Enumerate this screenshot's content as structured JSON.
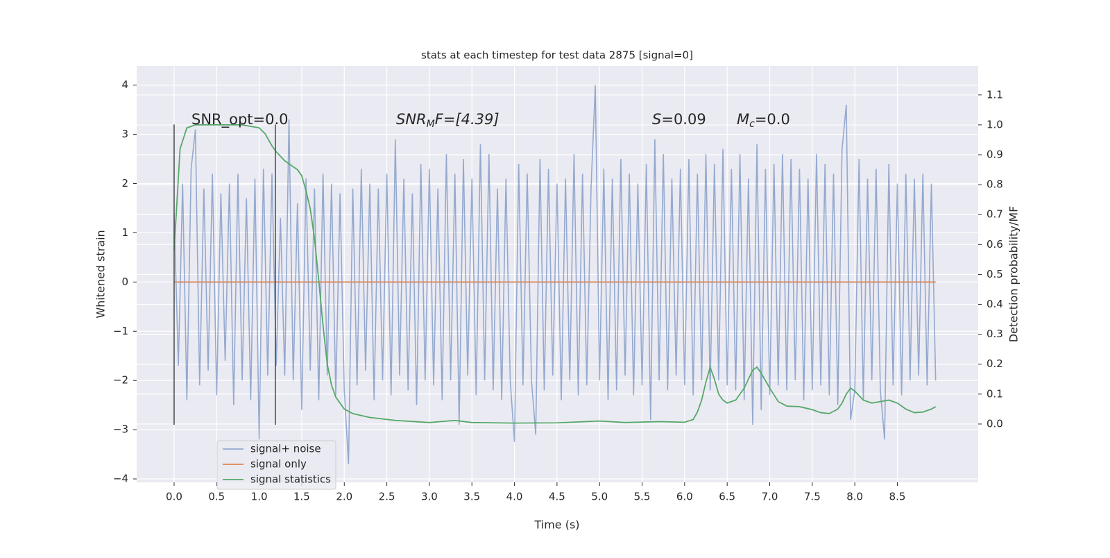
{
  "chart_data": {
    "type": "line",
    "title": "stats at each timestep for test data 2875 [signal=0]",
    "xlabel": "Time (s)",
    "ylabel": "Whitened strain",
    "y2label": "Detection probability/MF",
    "xlim": [
      -0.44,
      9.45
    ],
    "ylim": [
      -4.07,
      4.39
    ],
    "y2lim": [
      -0.195,
      1.197
    ],
    "xticks": [
      {
        "value": 0,
        "label": "0.0"
      },
      0.5,
      {
        "value": 1,
        "label": "1.0"
      },
      1.5,
      {
        "value": 2,
        "label": "2.0"
      },
      2.5,
      {
        "value": 3,
        "label": "3.0"
      },
      3.5,
      {
        "value": 4,
        "label": "4.0"
      },
      4.5,
      {
        "value": 5,
        "label": "5.0"
      },
      5.5,
      {
        "value": 6,
        "label": "6.0"
      },
      6.5,
      {
        "value": 7,
        "label": "7.0"
      },
      7.5,
      {
        "value": 8,
        "label": "8.0"
      },
      8.5
    ],
    "yticks": [
      {
        "value": -4,
        "label": "−4"
      },
      {
        "value": -3,
        "label": "−3"
      },
      {
        "value": -2,
        "label": "−2"
      },
      {
        "value": -1,
        "label": "−1"
      },
      0,
      1,
      2,
      3,
      4
    ],
    "y2ticks": [
      {
        "value": 0,
        "label": "0.0"
      },
      0.1,
      0.2,
      0.3,
      0.4,
      0.5,
      0.6,
      0.7,
      0.8,
      0.9,
      {
        "value": 1,
        "label": "1.0"
      },
      1.1
    ],
    "grid": true,
    "legend": "lower left",
    "series": [
      {
        "name": "signal+ noise",
        "color": "#4c72b0",
        "x": [
          0,
          0.05,
          0.1,
          0.15,
          0.2,
          0.25,
          0.3,
          0.35,
          0.4,
          0.45,
          0.5,
          0.55,
          0.6,
          0.65,
          0.7,
          0.75,
          0.8,
          0.85,
          0.9,
          0.95,
          1,
          1.05,
          1.1,
          1.15,
          1.2,
          1.25,
          1.3,
          1.35,
          1.4,
          1.45,
          1.5,
          1.55,
          1.6,
          1.65,
          1.7,
          1.75,
          1.8,
          1.85,
          1.9,
          1.95,
          2,
          2.05,
          2.1,
          2.15,
          2.2,
          2.25,
          2.3,
          2.35,
          2.4,
          2.45,
          2.5,
          2.55,
          2.6,
          2.65,
          2.7,
          2.75,
          2.8,
          2.85,
          2.9,
          2.95,
          3,
          3.05,
          3.1,
          3.15,
          3.2,
          3.25,
          3.3,
          3.35,
          3.4,
          3.45,
          3.5,
          3.55,
          3.6,
          3.65,
          3.7,
          3.75,
          3.8,
          3.85,
          3.9,
          3.95,
          4,
          4.05,
          4.1,
          4.15,
          4.2,
          4.25,
          4.3,
          4.35,
          4.4,
          4.45,
          4.5,
          4.55,
          4.6,
          4.65,
          4.7,
          4.75,
          4.8,
          4.85,
          4.9,
          4.95,
          5,
          5.05,
          5.1,
          5.15,
          5.2,
          5.25,
          5.3,
          5.35,
          5.4,
          5.45,
          5.5,
          5.55,
          5.6,
          5.65,
          5.7,
          5.75,
          5.8,
          5.85,
          5.9,
          5.95,
          6,
          6.05,
          6.1,
          6.15,
          6.2,
          6.25,
          6.3,
          6.35,
          6.4,
          6.45,
          6.5,
          6.55,
          6.6,
          6.65,
          6.7,
          6.75,
          6.8,
          6.85,
          6.9,
          6.95,
          7,
          7.05,
          7.1,
          7.15,
          7.2,
          7.25,
          7.3,
          7.35,
          7.4,
          7.45,
          7.5,
          7.55,
          7.6,
          7.65,
          7.7,
          7.75,
          7.8,
          7.85,
          7.9,
          7.95,
          8,
          8.05,
          8.1,
          8.15,
          8.2,
          8.25,
          8.3,
          8.35,
          8.4,
          8.45,
          8.5,
          8.55,
          8.6,
          8.65,
          8.7,
          8.75,
          8.8,
          8.85,
          8.9,
          8.95
        ],
        "values": [
          1.4,
          -1.7,
          2.0,
          -2.4,
          2.3,
          3.1,
          -2.1,
          1.9,
          -1.8,
          2.2,
          -2.3,
          1.8,
          -1.6,
          2.0,
          -2.5,
          2.2,
          -2.0,
          1.7,
          -2.4,
          2.1,
          -3.2,
          2.3,
          -1.9,
          2.2,
          -1.7,
          1.3,
          -1.9,
          3.3,
          -2.0,
          1.6,
          -2.6,
          2.1,
          -1.8,
          1.9,
          -2.4,
          2.2,
          -1.9,
          2.0,
          -2.3,
          1.8,
          -2.2,
          -3.7,
          1.9,
          -2.1,
          2.3,
          -1.8,
          2.0,
          -2.4,
          1.9,
          -2.0,
          2.2,
          -2.3,
          2.9,
          -1.9,
          2.1,
          -2.2,
          1.8,
          -2.5,
          2.4,
          -2.0,
          2.3,
          -2.1,
          1.9,
          -2.4,
          2.6,
          -2.0,
          2.2,
          -2.9,
          2.5,
          -1.9,
          2.1,
          -2.3,
          2.8,
          -2.0,
          2.6,
          -2.2,
          1.9,
          -2.4,
          2.1,
          -2.0,
          -3.25,
          2.4,
          -2.1,
          2.2,
          -2.0,
          -3.1,
          2.5,
          -2.2,
          2.3,
          -1.9,
          2.0,
          -2.4,
          2.1,
          -2.0,
          2.6,
          -2.3,
          2.2,
          -2.1,
          1.9,
          4.0,
          -2.0,
          2.3,
          -2.4,
          2.1,
          -2.2,
          2.5,
          -1.9,
          2.2,
          -2.3,
          2.0,
          -2.1,
          2.4,
          -2.8,
          2.9,
          -2.0,
          2.6,
          -2.2,
          2.1,
          -1.9,
          2.3,
          -2.1,
          2.5,
          -2.3,
          2.2,
          -2.0,
          2.6,
          -2.2,
          2.4,
          -2.0,
          2.7,
          -2.1,
          2.3,
          -2.2,
          2.6,
          -2.4,
          2.1,
          -2.9,
          2.8,
          -2.6,
          2.3,
          -2.3,
          2.4,
          -2.1,
          2.6,
          -2.2,
          2.5,
          -2.0,
          2.3,
          -2.4,
          2.1,
          -2.2,
          2.6,
          -2.1,
          2.4,
          -2.3,
          2.2,
          -2.5,
          2.7,
          3.6,
          -2.8,
          -2.2,
          2.5,
          -2.4,
          2.1,
          -2.0,
          2.3,
          -2.2,
          -3.2,
          2.4,
          -2.1,
          2.0,
          -2.3,
          2.2,
          -2.0,
          2.1,
          -1.9,
          2.2,
          -2.1,
          2.0,
          -2.0
        ]
      },
      {
        "name": "signal only",
        "color": "#dd8452",
        "x": [
          0,
          8.95
        ],
        "values": [
          0,
          0
        ]
      },
      {
        "name": "signal statistics",
        "color": "#55a868",
        "axis": "y2",
        "x": [
          0,
          0.07,
          0.15,
          0.25,
          0.5,
          0.8,
          1.0,
          1.07,
          1.15,
          1.2,
          1.3,
          1.4,
          1.45,
          1.5,
          1.55,
          1.6,
          1.65,
          1.7,
          1.75,
          1.8,
          1.85,
          1.9,
          2.0,
          2.1,
          2.3,
          2.6,
          3.0,
          3.3,
          3.5,
          4.0,
          4.5,
          5.0,
          5.3,
          5.7,
          6.0,
          6.1,
          6.15,
          6.2,
          6.25,
          6.3,
          6.35,
          6.4,
          6.45,
          6.5,
          6.6,
          6.7,
          6.8,
          6.85,
          6.9,
          7.0,
          7.1,
          7.2,
          7.35,
          7.5,
          7.6,
          7.7,
          7.8,
          7.85,
          7.9,
          7.95,
          8.0,
          8.1,
          8.2,
          8.3,
          8.4,
          8.5,
          8.6,
          8.7,
          8.8,
          8.9,
          8.95
        ],
        "values": [
          0.58,
          0.92,
          0.99,
          1.0,
          1.0,
          1.0,
          0.99,
          0.97,
          0.93,
          0.91,
          0.88,
          0.86,
          0.85,
          0.83,
          0.78,
          0.72,
          0.62,
          0.48,
          0.33,
          0.2,
          0.13,
          0.09,
          0.05,
          0.035,
          0.022,
          0.012,
          0.005,
          0.012,
          0.005,
          0.003,
          0.004,
          0.01,
          0.005,
          0.008,
          0.006,
          0.015,
          0.04,
          0.08,
          0.14,
          0.19,
          0.15,
          0.1,
          0.08,
          0.07,
          0.08,
          0.12,
          0.18,
          0.19,
          0.17,
          0.12,
          0.075,
          0.06,
          0.058,
          0.048,
          0.038,
          0.035,
          0.05,
          0.07,
          0.1,
          0.12,
          0.11,
          0.08,
          0.07,
          0.075,
          0.08,
          0.07,
          0.05,
          0.038,
          0.04,
          0.05,
          0.058
        ]
      }
    ],
    "vlines": {
      "x": [
        0,
        1.19
      ],
      "ymin": -2.9,
      "ymax": 3.2,
      "color": "#444444"
    },
    "annotations": [
      {
        "text": "SNR_opt=0.0"
      },
      {
        "text": "SNR",
        "sub": "M",
        "tail": "F=[4.39]"
      },
      {
        "text": "S",
        "tail": "=0.09"
      },
      {
        "text": "M",
        "sub": "c",
        "tail": "=0.0"
      }
    ]
  }
}
